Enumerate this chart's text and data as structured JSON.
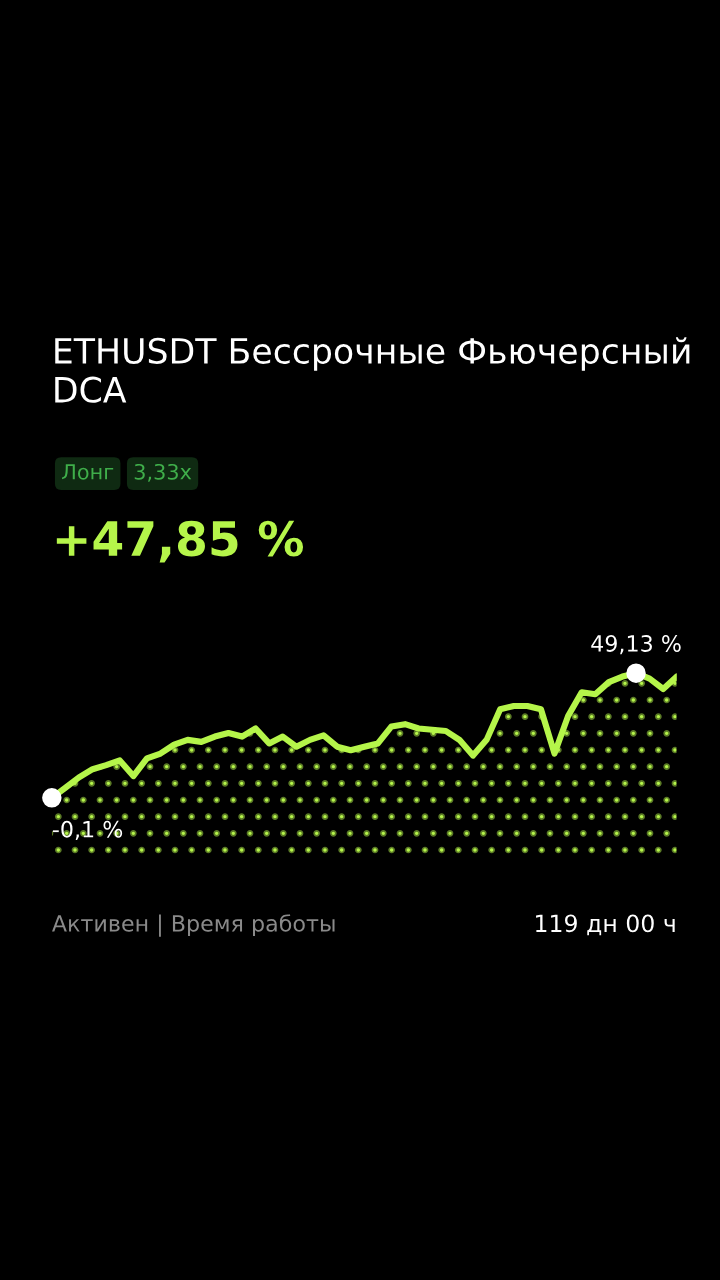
{
  "chart_data": {
    "type": "area",
    "title": "ETHUSDT Бессрочные Фьючерсный DCA",
    "annotations": [
      "Лонг",
      "3,33x",
      "+47,85 %",
      "Активен | Время работы",
      "119 дн 00 ч"
    ],
    "categories": [
      null,
      null,
      null,
      null,
      null,
      null,
      null,
      null,
      null,
      null,
      null,
      null,
      null,
      null,
      null,
      null,
      null,
      null,
      null,
      null,
      null,
      null,
      null,
      null,
      null,
      null,
      null,
      null,
      null,
      null,
      null,
      null,
      null,
      null,
      null,
      null,
      null,
      null,
      null,
      null,
      null,
      null,
      null,
      null,
      null,
      null,
      null
    ],
    "series": [
      {
        "color": "#b5f54a",
        "values": [
          -0.1,
          3.9,
          8.0,
          11.2,
          12.8,
          14.7,
          8.5,
          15.5,
          17.4,
          20.9,
          22.8,
          22.0,
          24.1,
          25.5,
          24.1,
          27.3,
          21.4,
          24.1,
          20.1,
          22.8,
          24.6,
          20.1,
          18.7,
          20.1,
          21.4,
          28.1,
          29.0,
          27.3,
          26.8,
          26.3,
          22.8,
          16.6,
          22.8,
          34.9,
          36.2,
          36.2,
          34.9,
          17.4,
          32.2,
          41.6,
          40.8,
          45.6,
          47.8,
          49.13,
          47.0,
          42.9,
          47.8
        ],
        "value_labels": [
          "-0,1 %",
          null,
          null,
          null,
          null,
          null,
          null,
          null,
          null,
          null,
          null,
          null,
          null,
          null,
          null,
          null,
          null,
          null,
          null,
          null,
          null,
          null,
          null,
          null,
          null,
          null,
          null,
          null,
          null,
          null,
          null,
          null,
          null,
          null,
          null,
          null,
          null,
          null,
          null,
          null,
          null,
          null,
          null,
          "49,13 %",
          null,
          null,
          null
        ]
      }
    ],
    "legend": false,
    "marker": "none",
    "line_style": "solid"
  }
}
